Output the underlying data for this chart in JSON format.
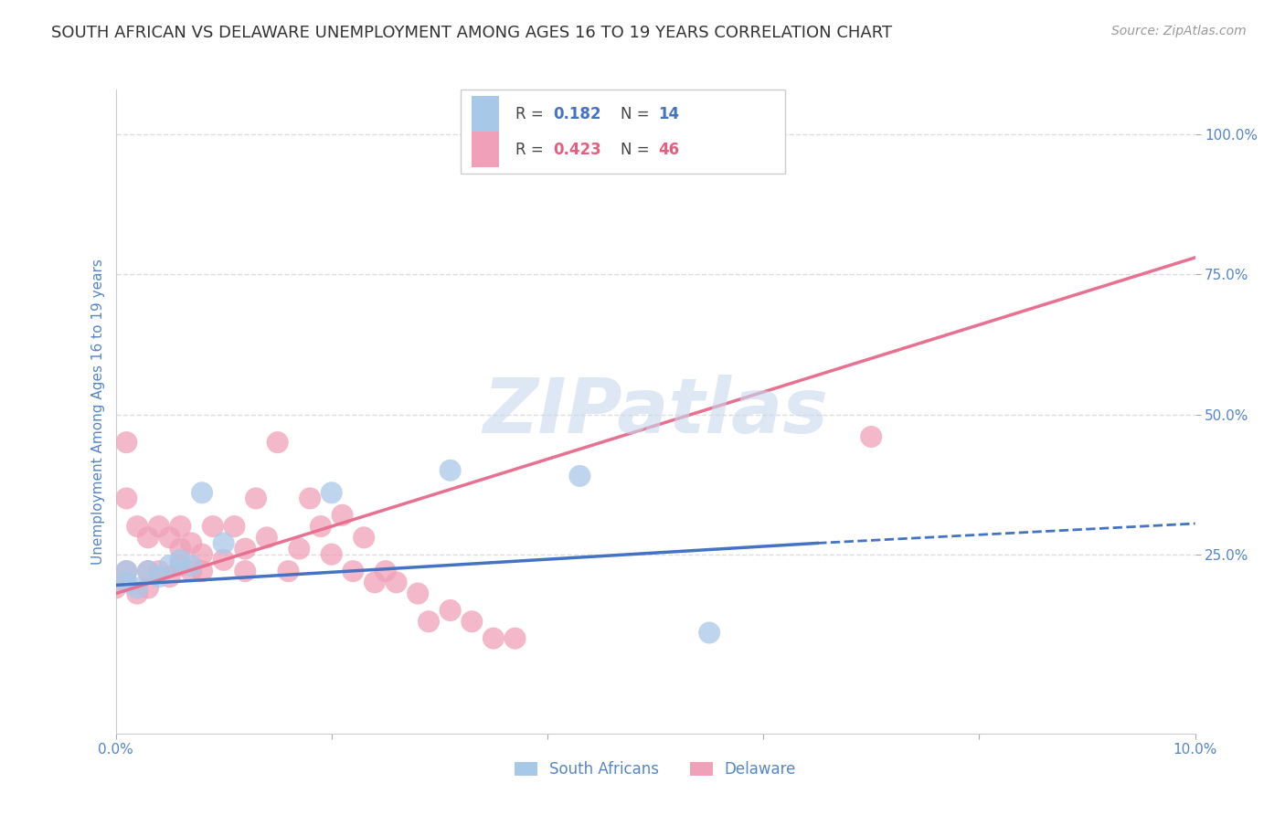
{
  "title": "SOUTH AFRICAN VS DELAWARE UNEMPLOYMENT AMONG AGES 16 TO 19 YEARS CORRELATION CHART",
  "source": "Source: ZipAtlas.com",
  "ylabel": "Unemployment Among Ages 16 to 19 years",
  "xlim": [
    0.0,
    0.1
  ],
  "ylim": [
    -0.07,
    1.08
  ],
  "xticks": [
    0.0,
    0.02,
    0.04,
    0.06,
    0.08,
    0.1
  ],
  "xtick_labels": [
    "0.0%",
    "",
    "",
    "",
    "",
    "10.0%"
  ],
  "ytick_values": [
    0.25,
    0.5,
    0.75,
    1.0
  ],
  "ytick_labels": [
    "25.0%",
    "50.0%",
    "75.0%",
    "100.0%"
  ],
  "blue_scatter_color": "#a8c8e8",
  "pink_scatter_color": "#f0a0b8",
  "blue_line_color": "#4472c4",
  "pink_line_color": "#e87090",
  "legend_blue_R": "0.182",
  "legend_blue_N": "14",
  "legend_pink_R": "0.423",
  "legend_pink_N": "46",
  "watermark": "ZIPatlas",
  "sa_x": [
    0.001,
    0.001,
    0.002,
    0.003,
    0.004,
    0.005,
    0.006,
    0.007,
    0.008,
    0.01,
    0.02,
    0.031,
    0.043,
    0.055
  ],
  "sa_y": [
    0.2,
    0.22,
    0.19,
    0.22,
    0.21,
    0.23,
    0.24,
    0.23,
    0.36,
    0.27,
    0.36,
    0.4,
    0.39,
    0.11
  ],
  "de_x": [
    0.0,
    0.001,
    0.001,
    0.001,
    0.002,
    0.002,
    0.003,
    0.003,
    0.003,
    0.004,
    0.004,
    0.005,
    0.005,
    0.006,
    0.006,
    0.006,
    0.007,
    0.007,
    0.008,
    0.008,
    0.009,
    0.01,
    0.011,
    0.012,
    0.012,
    0.013,
    0.014,
    0.015,
    0.016,
    0.017,
    0.018,
    0.019,
    0.02,
    0.021,
    0.022,
    0.023,
    0.024,
    0.025,
    0.026,
    0.028,
    0.029,
    0.031,
    0.033,
    0.035,
    0.037,
    0.07
  ],
  "de_y": [
    0.19,
    0.45,
    0.35,
    0.22,
    0.18,
    0.3,
    0.19,
    0.22,
    0.28,
    0.22,
    0.3,
    0.21,
    0.28,
    0.26,
    0.23,
    0.3,
    0.27,
    0.22,
    0.25,
    0.22,
    0.3,
    0.24,
    0.3,
    0.26,
    0.22,
    0.35,
    0.28,
    0.45,
    0.22,
    0.26,
    0.35,
    0.3,
    0.25,
    0.32,
    0.22,
    0.28,
    0.2,
    0.22,
    0.2,
    0.18,
    0.13,
    0.15,
    0.13,
    0.1,
    0.1,
    0.46
  ],
  "blue_trend_x0": 0.0,
  "blue_trend_y0": 0.195,
  "blue_trend_x1": 0.065,
  "blue_trend_y1": 0.27,
  "blue_trend_ext_x1": 0.1,
  "blue_trend_ext_y1": 0.305,
  "pink_trend_x0": 0.0,
  "pink_trend_y0": 0.18,
  "pink_trend_x1": 0.1,
  "pink_trend_y1": 0.78,
  "title_fontsize": 13,
  "tick_fontsize": 11,
  "source_fontsize": 10,
  "ylabel_fontsize": 11,
  "background_color": "#ffffff",
  "grid_color": "#dddddd",
  "title_color": "#333333",
  "axis_label_color": "#5585c5",
  "tick_color": "#5585c5",
  "source_color": "#999999",
  "watermark_color": "#c8d8ee",
  "legend_R_color": "#4472c4",
  "legend_N_color": "#4472c4",
  "legend_pink_R_color": "#e06080",
  "legend_pink_N_color": "#e06080"
}
